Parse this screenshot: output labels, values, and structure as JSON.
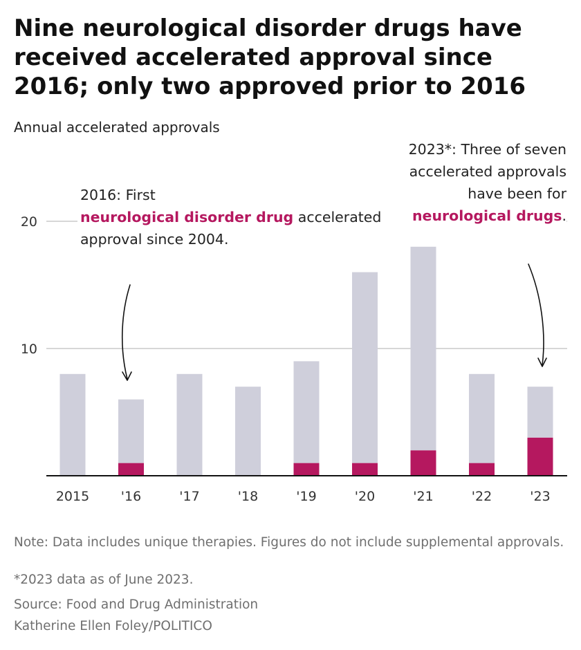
{
  "title": "Nine neurological disorder drugs have received accelerated approval since 2016; only two approved prior to 2016",
  "subtitle": "Annual accelerated approvals",
  "annotations": {
    "left": {
      "line1": "2016: First",
      "highlight": "neurological disorder drug",
      "rest1": " accelerated",
      "line3": "approval since 2004."
    },
    "right": {
      "line1": "2023*: Three of seven",
      "line2": "accelerated approvals",
      "line3": "have been for",
      "highlight": "neurological drugs",
      "end": "."
    }
  },
  "notes": {
    "note": "Note: Data includes unique therapies. Figures do not include supplemental approvals.",
    "asterisk": "*2023 data as of June 2023.",
    "source": "Source: Food and Drug Administration",
    "credit": "Katherine Ellen Foley/POLITICO"
  },
  "colors": {
    "total": "#cfcfdb",
    "neuro": "#b5185f",
    "grid": "#bdbdbd",
    "axis": "#111111"
  },
  "chart_data": {
    "type": "bar",
    "stacked": true,
    "categories": [
      "2015",
      "'16",
      "'17",
      "'18",
      "'19",
      "'20",
      "'21",
      "'22",
      "'23"
    ],
    "series": [
      {
        "values": [
          0,
          1,
          0,
          0,
          1,
          1,
          2,
          1,
          3
        ],
        "color": "#b5185f"
      },
      {
        "values": [
          8,
          5,
          8,
          7,
          8,
          15,
          16,
          7,
          4
        ],
        "color": "#cfcfdb"
      }
    ],
    "totals": [
      8,
      6,
      8,
      7,
      9,
      16,
      18,
      8,
      7
    ],
    "ylim": [
      0,
      20
    ],
    "yticks": [
      10,
      20
    ],
    "grid": true
  }
}
